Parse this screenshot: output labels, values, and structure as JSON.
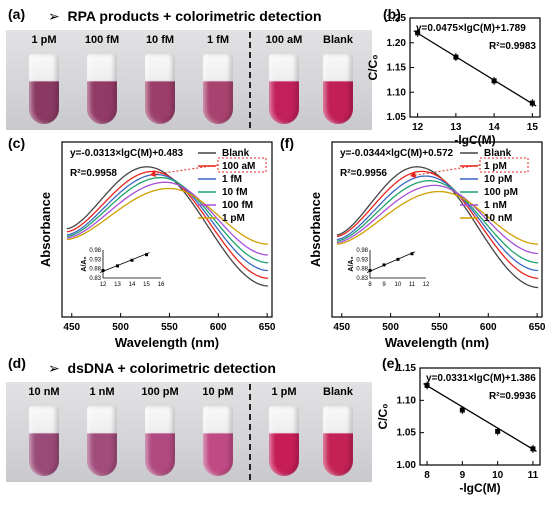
{
  "panel_a": {
    "label": "(a)",
    "title": "RPA products + colorimetric detection",
    "tubes": [
      {
        "label": "1 pM",
        "color": "#8a3a62"
      },
      {
        "label": "100 fM",
        "color": "#913a66"
      },
      {
        "label": "10 fM",
        "color": "#9c3e6a"
      },
      {
        "label": "1 fM",
        "color": "#a8426e"
      },
      {
        "label": "100 aM",
        "color": "#c2205a"
      },
      {
        "label": "Blank",
        "color": "#c11f55"
      }
    ]
  },
  "panel_d": {
    "label": "(d)",
    "title": "dsDNA + colorimetric detection",
    "tubes": [
      {
        "label": "10 nM",
        "color": "#9a4a78"
      },
      {
        "label": "1 nM",
        "color": "#a24c7c"
      },
      {
        "label": "100 pM",
        "color": "#b04a80"
      },
      {
        "label": "10 pM",
        "color": "#c04a84"
      },
      {
        "label": "1 pM",
        "color": "#c61d57"
      },
      {
        "label": "Blank",
        "color": "#c42256"
      }
    ]
  },
  "chart_data": [
    {
      "panel": "(b)",
      "type": "scatter",
      "equation": "y=0.0475×lgC(M)+1.789",
      "r2": "R²=0.9983",
      "xlabel": "-lgC(M)",
      "ylabel": "C/C₀",
      "xlim": [
        11.8,
        15.2
      ],
      "ylim": [
        1.05,
        1.25
      ],
      "xticks": [
        "12",
        "13",
        "14",
        "15"
      ],
      "yticks": [
        "1.05",
        "1.10",
        "1.15",
        "1.20",
        "1.25"
      ],
      "x": [
        12,
        13,
        14,
        15
      ],
      "y": [
        1.22,
        1.171,
        1.123,
        1.078
      ],
      "fit": [
        [
          11.9,
          1.224
        ],
        [
          15.1,
          1.072
        ]
      ]
    },
    {
      "panel": "(e)",
      "type": "scatter",
      "equation": "y=0.0331×lgC(M)+1.386",
      "r2": "R²=0.9936",
      "xlabel": "-lgC(M)",
      "ylabel": "C/C₀",
      "xlim": [
        7.8,
        11.2
      ],
      "ylim": [
        1.0,
        1.15
      ],
      "xticks": [
        "8",
        "9",
        "10",
        "11"
      ],
      "yticks": [
        "1.00",
        "1.05",
        "1.10",
        "1.15"
      ],
      "x": [
        8,
        9,
        10,
        11
      ],
      "y": [
        1.123,
        1.085,
        1.052,
        1.025
      ],
      "fit": [
        [
          7.9,
          1.126
        ],
        [
          11.1,
          1.021
        ]
      ]
    },
    {
      "panel": "(c)",
      "type": "line",
      "equation": "y=-0.0313×lgC(M)+0.483",
      "r2": "R²=0.9958",
      "xlabel": "Wavelength (nm)",
      "ylabel": "Absorbance",
      "xlim": [
        440,
        655
      ],
      "ylim": [
        0.05,
        1.18
      ],
      "xticks": [
        "450",
        "500",
        "550",
        "600",
        "650"
      ],
      "highlighted_legend": "100 aM",
      "series": [
        {
          "name": "Blank",
          "color": "#444444",
          "peak_x": 527,
          "peak_y": 1.02,
          "left": 0.62,
          "right": 0.25
        },
        {
          "name": "100 aM",
          "color": "#e8241c",
          "peak_x": 533,
          "peak_y": 0.99,
          "left": 0.6,
          "right": 0.3
        },
        {
          "name": "1 fM",
          "color": "#3a67c4",
          "peak_x": 537,
          "peak_y": 0.97,
          "left": 0.58,
          "right": 0.35
        },
        {
          "name": "10 fM",
          "color": "#1fa36b",
          "peak_x": 541,
          "peak_y": 0.95,
          "left": 0.57,
          "right": 0.4
        },
        {
          "name": "100 fM",
          "color": "#a94fd8",
          "peak_x": 546,
          "peak_y": 0.92,
          "left": 0.56,
          "right": 0.45
        },
        {
          "name": "1 pM",
          "color": "#d0a000",
          "peak_x": 550,
          "peak_y": 0.88,
          "left": 0.55,
          "right": 0.52
        }
      ],
      "inset": {
        "ylabel": "A/A₀",
        "xticks": [
          "12",
          "13",
          "14",
          "15",
          "16"
        ],
        "yticks": [
          "0.83",
          "0.88",
          "0.93",
          "0.98"
        ],
        "x": [
          12,
          13,
          14,
          15
        ],
        "y": [
          0.87,
          0.895,
          0.925,
          0.955
        ]
      }
    },
    {
      "panel": "(f)",
      "type": "line",
      "equation": "y=-0.0344×lgC(M)+0.572",
      "r2": "R²=0.9956",
      "xlabel": "Wavelength (nm)",
      "ylabel": "Absorbance",
      "xlim": [
        440,
        655
      ],
      "ylim": [
        0.05,
        1.18
      ],
      "xticks": [
        "450",
        "500",
        "550",
        "600",
        "650"
      ],
      "highlighted_legend": "1 pM",
      "series": [
        {
          "name": "Blank",
          "color": "#444444",
          "peak_x": 527,
          "peak_y": 1.02,
          "left": 0.58,
          "right": 0.24
        },
        {
          "name": "1 pM",
          "color": "#e8241c",
          "peak_x": 532,
          "peak_y": 0.99,
          "left": 0.57,
          "right": 0.3
        },
        {
          "name": "10 pM",
          "color": "#3a67c4",
          "peak_x": 536,
          "peak_y": 0.96,
          "left": 0.55,
          "right": 0.35
        },
        {
          "name": "100 pM",
          "color": "#1fa36b",
          "peak_x": 540,
          "peak_y": 0.93,
          "left": 0.54,
          "right": 0.4
        },
        {
          "name": "1 nM",
          "color": "#a94fd8",
          "peak_x": 545,
          "peak_y": 0.9,
          "left": 0.53,
          "right": 0.46
        },
        {
          "name": "10 nM",
          "color": "#d0a000",
          "peak_x": 550,
          "peak_y": 0.86,
          "left": 0.52,
          "right": 0.52
        }
      ],
      "inset": {
        "ylabel": "A/A₀",
        "xticks": [
          "8",
          "9",
          "10",
          "11",
          "12"
        ],
        "yticks": [
          "0.83",
          "0.88",
          "0.93",
          "0.98"
        ],
        "x": [
          8,
          9,
          10,
          11
        ],
        "y": [
          0.87,
          0.9,
          0.93,
          0.96
        ]
      }
    }
  ]
}
